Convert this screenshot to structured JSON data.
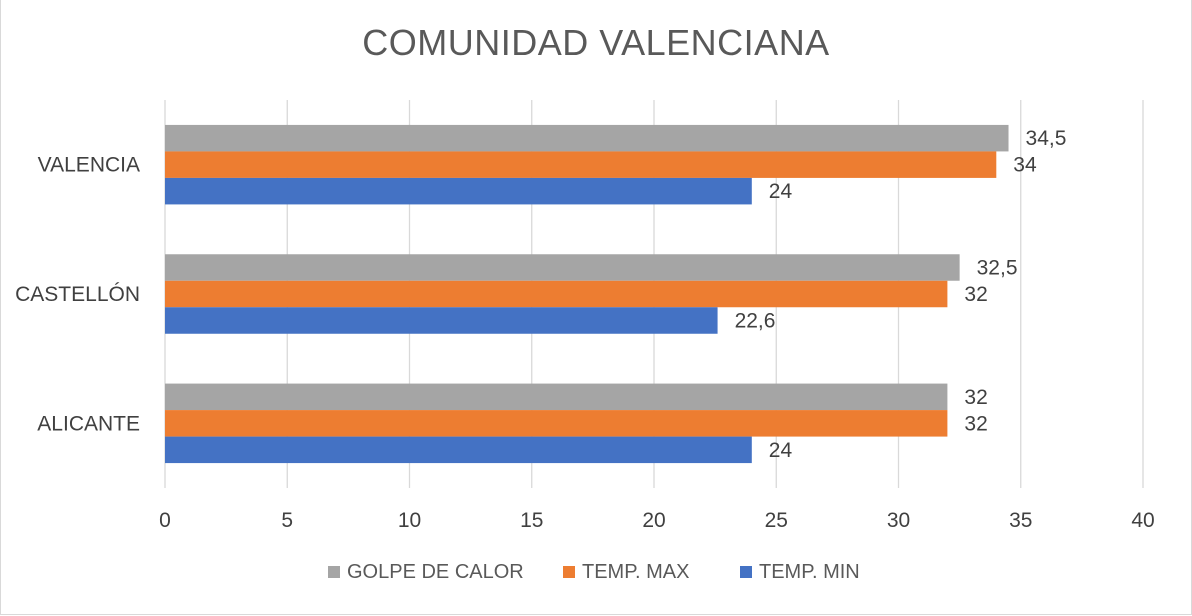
{
  "chart_data": {
    "type": "bar",
    "orientation": "horizontal",
    "title": "COMUNIDAD VALENCIANA",
    "categories": [
      "VALENCIA",
      "CASTELLÓN",
      "ALICANTE"
    ],
    "series": [
      {
        "name": "GOLPE DE CALOR",
        "values": [
          34.5,
          32.5,
          32
        ],
        "labels": [
          "34,5",
          "32,5",
          "32"
        ],
        "color": "#a5a5a5"
      },
      {
        "name": "TEMP. MAX",
        "values": [
          34,
          32,
          32
        ],
        "labels": [
          "34",
          "32",
          "32"
        ],
        "color": "#ed7d31"
      },
      {
        "name": "TEMP. MIN",
        "values": [
          24,
          22.6,
          24
        ],
        "labels": [
          "24",
          "22,6",
          "24"
        ],
        "color": "#4472c4"
      }
    ],
    "xlim": [
      0,
      40
    ],
    "xticks": [
      0,
      5,
      10,
      15,
      20,
      25,
      30,
      35,
      40
    ],
    "xlabel": "",
    "ylabel": "",
    "grid": true,
    "legend": "bottom"
  }
}
